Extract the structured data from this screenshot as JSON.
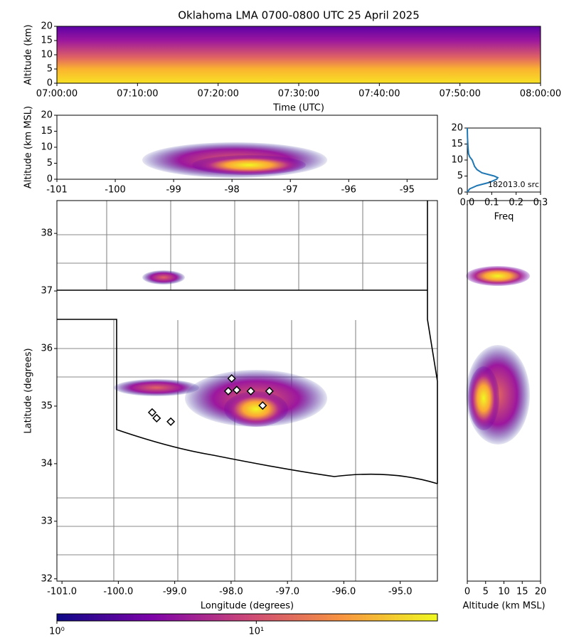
{
  "chart_data": [
    {
      "type": "heatmap",
      "title": "Oklahoma LMA 0700-0800 UTC 25 April 2025",
      "xlabel": "Time (UTC)",
      "ylabel": "Altitude (km)",
      "xlim": [
        0,
        60
      ],
      "xticks": [
        {
          "value": 0,
          "label": "07:00:00"
        },
        {
          "value": 10,
          "label": "07:10:00"
        },
        {
          "value": 20,
          "label": "07:20:00"
        },
        {
          "value": 30,
          "label": "07:30:00"
        },
        {
          "value": 40,
          "label": "07:40:00"
        },
        {
          "value": 50,
          "label": "07:50:00"
        },
        {
          "value": 60,
          "label": "08:00:00"
        }
      ],
      "ylim": [
        0,
        20
      ],
      "yticks": [
        0,
        5,
        10,
        15,
        20
      ]
    },
    {
      "type": "heatmap",
      "ylabel": "Altitude (km MSL)",
      "xlim": [
        -101,
        -94.48
      ],
      "xticks": [
        -101,
        -100,
        -99,
        -98,
        -97,
        -96,
        -95
      ],
      "ylim": [
        0,
        20
      ],
      "yticks": [
        0,
        5,
        10,
        15,
        20
      ]
    },
    {
      "type": "line",
      "xlabel": "Freq",
      "annotation": "182013.0 src",
      "color": "#1f77b4",
      "altitude": [
        0,
        1,
        2,
        3,
        4,
        4.5,
        5,
        6,
        7,
        8,
        9,
        10,
        11,
        12,
        14,
        17,
        20
      ],
      "values": [
        0.0,
        0.01,
        0.04,
        0.09,
        0.12,
        0.125,
        0.11,
        0.06,
        0.04,
        0.03,
        0.025,
        0.02,
        0.01,
        0.005,
        0.003,
        0.001,
        0.0
      ],
      "xlim": [
        0,
        0.3
      ],
      "xticks": [
        {
          "value": 0,
          "label": "0.0"
        },
        {
          "value": 0.1,
          "label": "0.1"
        },
        {
          "value": 0.2,
          "label": "0.2"
        },
        {
          "value": 0.3,
          "label": "0.3"
        }
      ],
      "ylim": [
        0,
        20
      ],
      "yticks": [
        0,
        5,
        10,
        15,
        20
      ]
    },
    {
      "type": "scatter",
      "xlabel": "Longitude (degrees)",
      "ylabel": "Latitude (degrees)",
      "x": [
        -97.99,
        -98.05,
        -97.9,
        -97.65,
        -97.32,
        -97.44,
        -99.4,
        -99.32,
        -99.07
      ],
      "values": [
        35.48,
        35.26,
        35.28,
        35.26,
        35.26,
        35.01,
        34.89,
        34.79,
        34.73
      ],
      "xlim": [
        -101.09,
        -94.34
      ],
      "xticks": [
        {
          "value": -101,
          "label": "-101.0"
        },
        {
          "value": -100,
          "label": "-100.0"
        },
        {
          "value": -99,
          "label": "-99.0"
        },
        {
          "value": -98,
          "label": "-98.0"
        },
        {
          "value": -97,
          "label": "-97.0"
        },
        {
          "value": -96,
          "label": "-96.0"
        },
        {
          "value": -95,
          "label": "-95.0"
        }
      ],
      "ylim": [
        31.96,
        38.57
      ],
      "yticks": [
        32,
        33,
        34,
        35,
        36,
        37,
        38
      ]
    },
    {
      "type": "heatmap",
      "xlabel": "Altitude (km MSL)",
      "xlim": [
        0,
        20
      ],
      "xticks": [
        0,
        5,
        10,
        15,
        20
      ],
      "ylim": [
        31.96,
        38.57
      ]
    },
    {
      "type": "colorbar",
      "log_scale": true,
      "xlim": [
        1,
        81
      ],
      "xticks": [
        {
          "value": 1,
          "label": "10⁰"
        },
        {
          "value": 10,
          "label": "10¹"
        }
      ]
    }
  ]
}
